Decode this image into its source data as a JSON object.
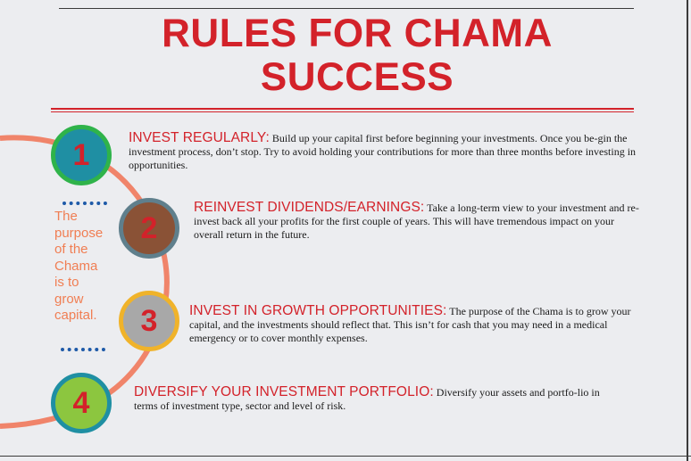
{
  "title": {
    "line1": "RULES FOR CHAMA",
    "line2": "SUCCESS"
  },
  "pullquote": {
    "lines": [
      "The",
      "purpose",
      "of the",
      "Chama",
      "is to",
      "grow",
      "capital."
    ]
  },
  "rules": [
    {
      "number": "1",
      "heading": "INVEST REGULARLY:",
      "body": "Build up your capital first before beginning your investments. Once you be-gin the investment process, don’t stop. Try to avoid holding your contributions for more than three months before investing in opportunities."
    },
    {
      "number": "2",
      "heading": "REINVEST DIVIDENDS/EARNINGS:",
      "body": "Take a long-term view to your investment and re-invest back all your profits for the first couple of years. This will have tremendous impact on your overall return in the future."
    },
    {
      "number": "3",
      "heading": "INVEST IN GROWTH OPPORTUNITIES:",
      "body": "The purpose of the Chama is to grow your capital, and the investments should reflect that. This isn’t for cash that you may need in a medical emergency or to cover monthly expenses."
    },
    {
      "number": "4",
      "heading": "DIVERSIFY YOUR INVESTMENT PORTFOLIO:",
      "body": "Diversify your assets and portfo-lio in terms of investment type, sector and level of risk."
    }
  ],
  "colors": {
    "accent": "#d3222a",
    "arc": "#f0846a",
    "quote": "#f07e53",
    "dots": "#1e5aa8"
  }
}
